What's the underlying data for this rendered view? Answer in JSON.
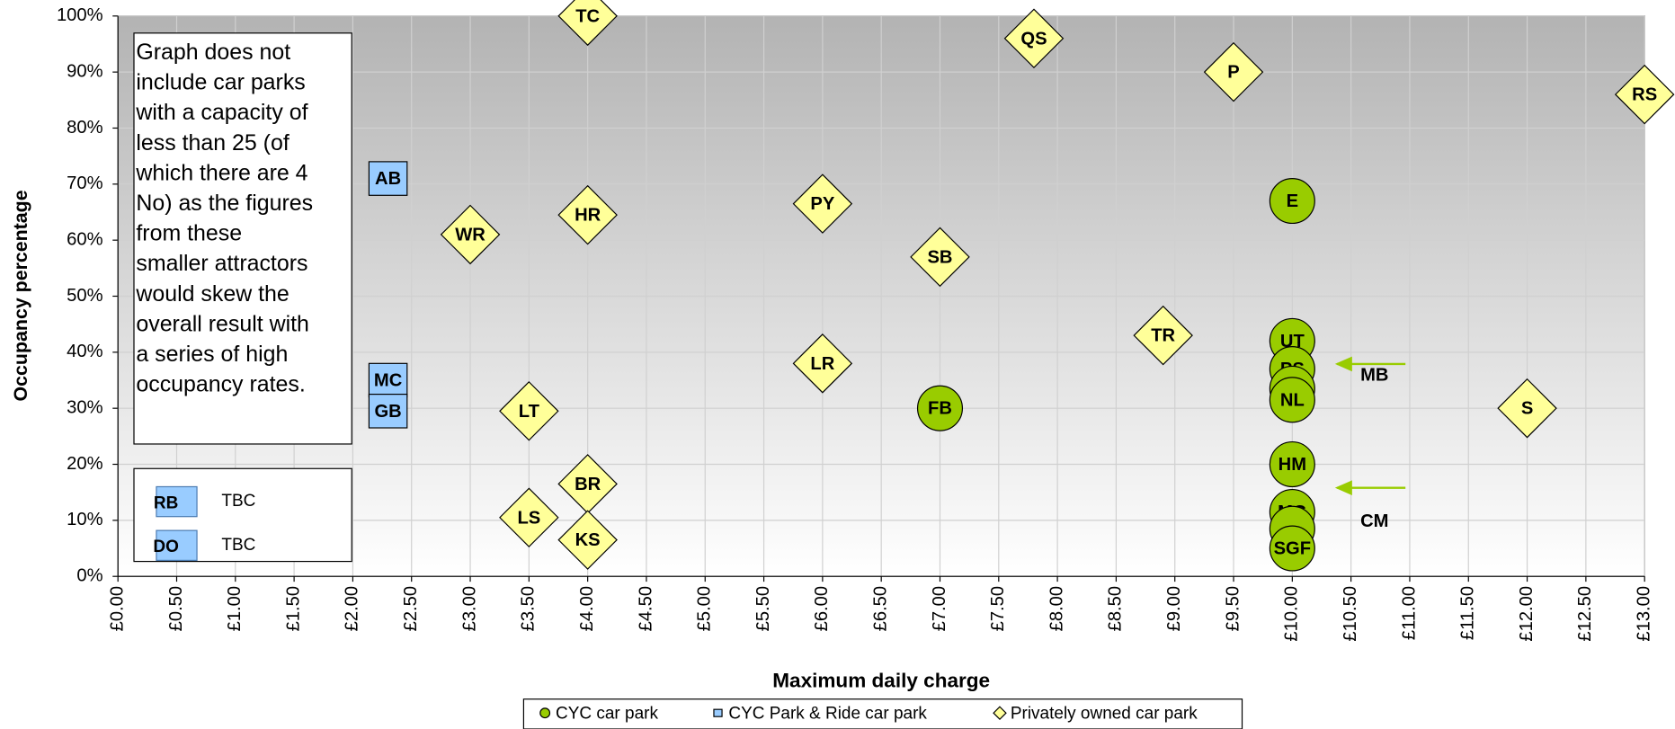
{
  "chart_data": {
    "type": "scatter",
    "x_label": "Maximum daily charge",
    "y_label": "Occupancy percentage",
    "xlim": [
      0,
      13
    ],
    "ylim": [
      0,
      100
    ],
    "xticks": [
      {
        "value": 0,
        "label": "£0.00"
      },
      {
        "value": 0.5,
        "label": "£0.50"
      },
      {
        "value": 1,
        "label": "£1.00"
      },
      {
        "value": 1.5,
        "label": "£1.50"
      },
      {
        "value": 2,
        "label": "£2.00"
      },
      {
        "value": 2.5,
        "label": "£2.50"
      },
      {
        "value": 3,
        "label": "£3.00"
      },
      {
        "value": 3.5,
        "label": "£3.50"
      },
      {
        "value": 4,
        "label": "£4.00"
      },
      {
        "value": 4.5,
        "label": "£4.50"
      },
      {
        "value": 5,
        "label": "£5.00"
      },
      {
        "value": 5.5,
        "label": "£5.50"
      },
      {
        "value": 6,
        "label": "£6.00"
      },
      {
        "value": 6.5,
        "label": "£6.50"
      },
      {
        "value": 7,
        "label": "£7.00"
      },
      {
        "value": 7.5,
        "label": "£7.50"
      },
      {
        "value": 8,
        "label": "£8.00"
      },
      {
        "value": 8.5,
        "label": "£8.50"
      },
      {
        "value": 9,
        "label": "£9.00"
      },
      {
        "value": 9.5,
        "label": "£9.50"
      },
      {
        "value": 10,
        "label": "£10.00"
      },
      {
        "value": 10.5,
        "label": "£10.50"
      },
      {
        "value": 11,
        "label": "£11.00"
      },
      {
        "value": 11.5,
        "label": "£11.50"
      },
      {
        "value": 12,
        "label": "£12.00"
      },
      {
        "value": 12.5,
        "label": "£12.50"
      },
      {
        "value": 13,
        "label": "£13.00"
      }
    ],
    "yticks": [
      {
        "value": 0,
        "label": "0%"
      },
      {
        "value": 10,
        "label": "10%"
      },
      {
        "value": 20,
        "label": "20%"
      },
      {
        "value": 30,
        "label": "30%"
      },
      {
        "value": 40,
        "label": "40%"
      },
      {
        "value": 50,
        "label": "50%"
      },
      {
        "value": 60,
        "label": "60%"
      },
      {
        "value": 70,
        "label": "70%"
      },
      {
        "value": 80,
        "label": "80%"
      },
      {
        "value": 90,
        "label": "90%"
      },
      {
        "value": 100,
        "label": "100%"
      }
    ],
    "grid": true,
    "series": [
      {
        "name": "CYC car park",
        "color": "#99cc00",
        "marker": "circle",
        "x": [
          7,
          10,
          10,
          10,
          10,
          10,
          10,
          10,
          10,
          10
        ],
        "values": [
          30,
          67,
          42,
          37,
          33.5,
          31.5,
          20,
          11.5,
          8.5,
          5
        ],
        "labels": [
          "FB",
          "E",
          "UT",
          "PS",
          null,
          "NL",
          "HM",
          "MG",
          null,
          "SGF"
        ]
      },
      {
        "name": "CYC Park & Ride car park",
        "color": "#99ccff",
        "marker": "square",
        "x": [
          2.3,
          2.3,
          2.3
        ],
        "values": [
          71,
          35,
          29.5
        ],
        "labels": [
          "AB",
          "MC",
          "GB"
        ]
      },
      {
        "name": "Privately owned car park",
        "color": "#ffff99",
        "marker": "diamond",
        "x": [
          4,
          7.8,
          9.5,
          13,
          3,
          4,
          6,
          7,
          8.9,
          6,
          3.5,
          12,
          4,
          3.5,
          4
        ],
        "values": [
          100,
          96,
          90,
          86,
          61,
          64.5,
          66.5,
          57,
          43,
          38,
          29.5,
          30,
          16.5,
          10.5,
          6.5
        ],
        "labels": [
          "TC",
          "QS",
          "P",
          "RS",
          "WR",
          "HR",
          "PY",
          "SB",
          "TR",
          "LR",
          "LT",
          "S",
          "BR",
          "LS",
          "KS"
        ]
      }
    ],
    "annotations": [
      "MB",
      "CM"
    ],
    "tbc_box": [
      {
        "code": "RB",
        "status": "TBC"
      },
      {
        "code": "DO",
        "status": "TBC"
      }
    ],
    "note": [
      "Graph does not",
      "include car parks",
      "with a capacity of",
      "less than 25 (of",
      "which there are 4",
      "No) as the figures",
      "from these",
      "smaller attractors",
      "would skew the",
      "overall result with",
      "a series of high",
      "occupancy rates."
    ]
  }
}
